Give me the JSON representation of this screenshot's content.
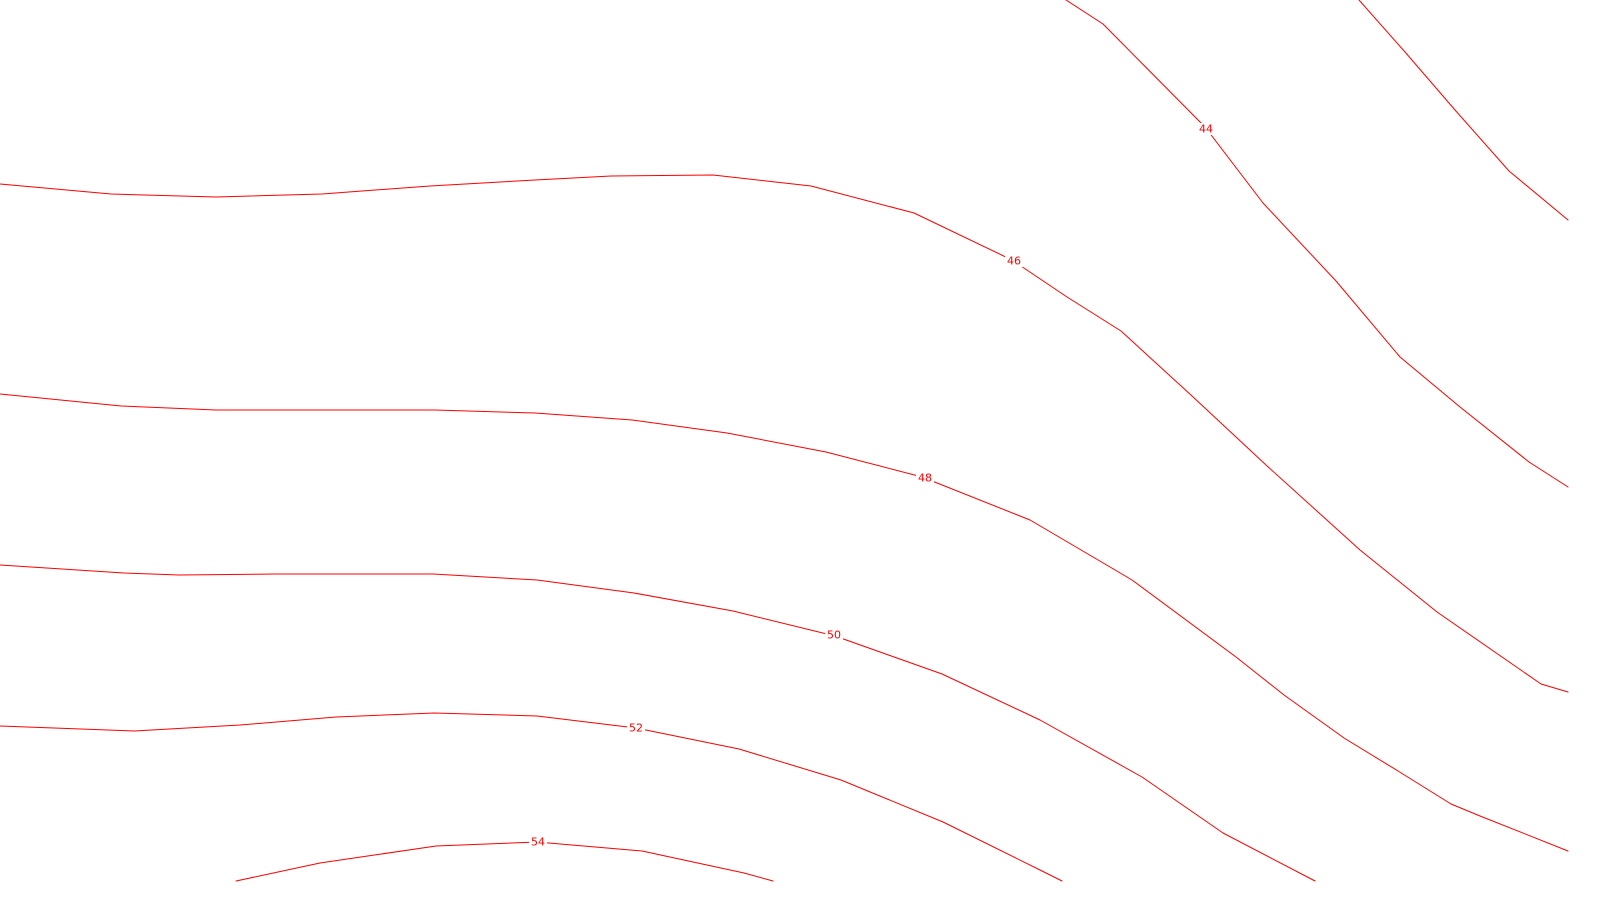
{
  "map": {
    "line_color": "#ff0000",
    "background": "#ffffff",
    "contours": [
      {
        "id": "contour-unlabeled",
        "label": ""
      },
      {
        "id": "contour-44",
        "label": "44"
      },
      {
        "id": "contour-46",
        "label": "46"
      },
      {
        "id": "contour-48",
        "label": "48"
      },
      {
        "id": "contour-50",
        "label": "50"
      },
      {
        "id": "contour-52",
        "label": "52"
      },
      {
        "id": "contour-54",
        "label": "54"
      }
    ]
  }
}
